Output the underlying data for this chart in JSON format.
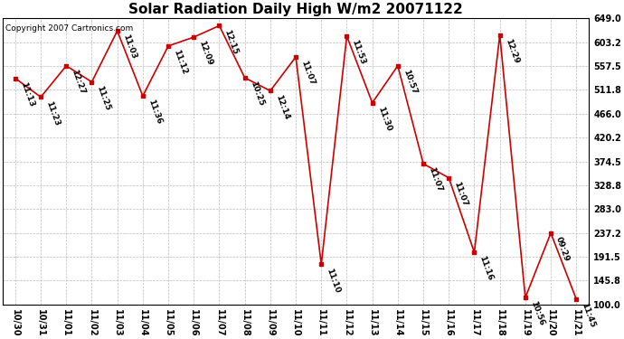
{
  "title": "Solar Radiation Daily High W/m2 20071122",
  "copyright": "Copyright 2007 Cartronics.com",
  "x_labels": [
    "10/30",
    "10/31",
    "11/01",
    "11/02",
    "11/03",
    "11/04",
    "11/05",
    "11/06",
    "11/07",
    "11/08",
    "11/09",
    "11/10",
    "11/11",
    "11/12",
    "11/13",
    "11/14",
    "11/15",
    "11/16",
    "11/17",
    "11/18",
    "11/19",
    "11/20",
    "11/21"
  ],
  "y_values": [
    534,
    498,
    558,
    527,
    625,
    500,
    596,
    613,
    635,
    535,
    510,
    575,
    177,
    615,
    487,
    558,
    370,
    343,
    200,
    617,
    113,
    237,
    110
  ],
  "time_labels": [
    "11:13",
    "11:23",
    "12:27",
    "11:25",
    "11:03",
    "11:36",
    "11:12",
    "12:09",
    "12:15",
    "10:25",
    "12:14",
    "11:07",
    "11:10",
    "11:53",
    "11:30",
    "10:57",
    "11:07",
    "11:07",
    "11:16",
    "12:29",
    "10:56",
    "09:29",
    "11:45"
  ],
  "y_ticks": [
    100.0,
    145.8,
    191.5,
    237.2,
    283.0,
    328.8,
    374.5,
    420.2,
    466.0,
    511.8,
    557.5,
    603.2,
    649.0
  ],
  "ylim_min": 100,
  "ylim_max": 649,
  "line_color": "#cc0000",
  "bg_color": "#ffffff",
  "grid_color": "#bbbbbb",
  "title_fontsize": 11,
  "tick_fontsize": 7,
  "time_fontsize": 6.5,
  "copyright_fontsize": 6.5
}
